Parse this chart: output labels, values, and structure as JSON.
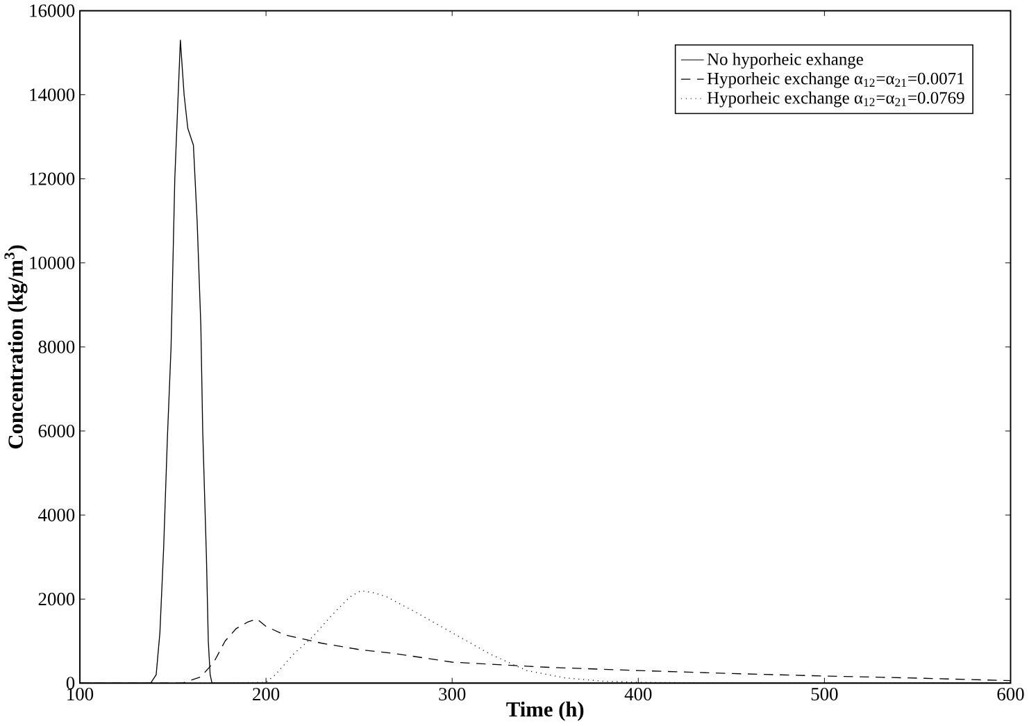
{
  "chart_data": {
    "type": "line",
    "xlabel": "Time (h)",
    "ylabel": "Concentration (kg/m$^{3}$)",
    "xlim": [
      100,
      600
    ],
    "ylim": [
      0,
      16000
    ],
    "xticks": [
      100,
      200,
      300,
      400,
      500,
      600
    ],
    "yticks": [
      0,
      2000,
      4000,
      6000,
      8000,
      10000,
      12000,
      14000,
      16000
    ],
    "grid": false,
    "legend": "top right",
    "marker": "none",
    "series": [
      {
        "name": "No hyporheic exhange",
        "color": "#000000",
        "line_style": "solid",
        "x": [
          100,
          130,
          138,
          141,
          143,
          145,
          147,
          149,
          151,
          154,
          156,
          158,
          161,
          163,
          165,
          166,
          168,
          169,
          170,
          171,
          600
        ],
        "values": [
          0,
          0,
          0,
          200,
          1200,
          3200,
          5800,
          8000,
          12000,
          15300,
          14000,
          13200,
          12800,
          11000,
          8500,
          6000,
          3000,
          1000,
          200,
          0,
          0
        ]
      },
      {
        "name": "Hyporheic exchange α$_{12}$=α$_{21}$=0.0071",
        "color": "#000000",
        "line_style": "dashed",
        "x": [
          100,
          155,
          165,
          172,
          178,
          184,
          190,
          195,
          200,
          210,
          230,
          250,
          270,
          300,
          350,
          400,
          450,
          500,
          550,
          600
        ],
        "values": [
          0,
          0,
          150,
          500,
          1000,
          1300,
          1450,
          1530,
          1350,
          1150,
          950,
          800,
          700,
          500,
          380,
          300,
          230,
          170,
          120,
          60
        ]
      },
      {
        "name": "Hyporheic exchange α$_{12}$=α$_{21}$=0.0769",
        "color": "#000000",
        "line_style": "dotted",
        "x": [
          100,
          175,
          200,
          205,
          215,
          225,
          235,
          245,
          251,
          258,
          265,
          280,
          300,
          320,
          340,
          360,
          380,
          400,
          450,
          600
        ],
        "values": [
          0,
          0,
          20,
          200,
          700,
          1100,
          1600,
          2050,
          2200,
          2150,
          2050,
          1700,
          1200,
          700,
          300,
          130,
          50,
          20,
          0,
          0
        ]
      }
    ]
  }
}
